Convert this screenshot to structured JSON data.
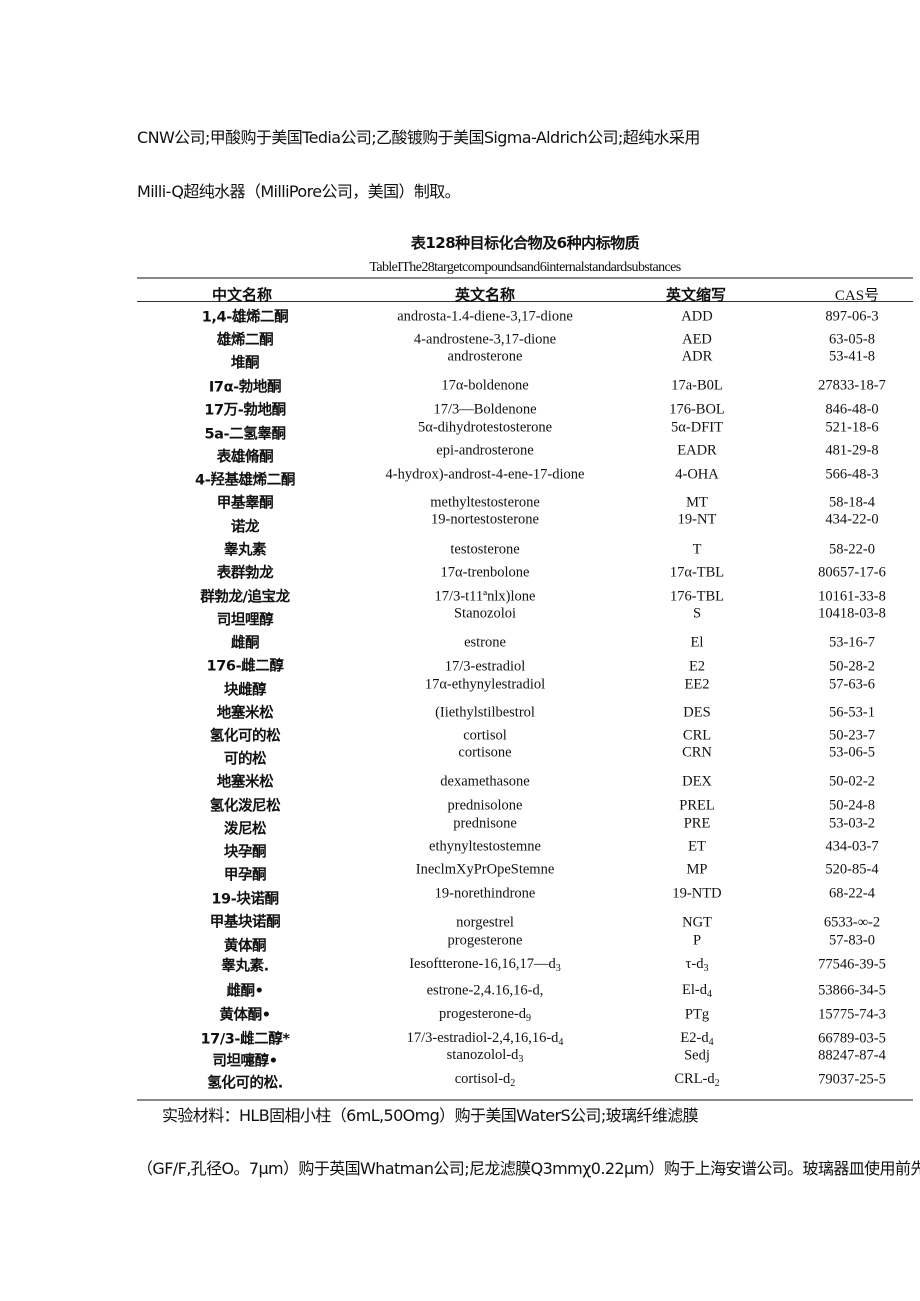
{
  "paragraph_top": [
    "CNW公司;甲酸购于美国Tedia公司;乙酸镀购于美国Sigma-Aldrich公司;超纯水采用",
    "Milli-Q超纯水器（MilliPore公司，美国）制取。"
  ],
  "table": {
    "caption_cn": "表128种目标化合物及6种内标物质",
    "caption_en": "TableIThe28targetcompoundsand6internalstandardsubstances",
    "headers": [
      "中文名称",
      "英文名称",
      "英文缩写",
      "CAS号"
    ],
    "rows": [
      {
        "cn": "1,4-雄烯二酮",
        "en": "androsta-1.4-diene-3,17-dione",
        "ab": "ADD",
        "cas": "897-06-3"
      },
      {
        "cn": "雄烯二酮",
        "en": "4-androstene-3,17-dione",
        "ab": "AED",
        "cas": "63-05-8"
      },
      {
        "cn": "堆酮",
        "en": "androsterone",
        "ab": "ADR",
        "cas": "53-41-8"
      },
      {
        "cn": "I7α-勃地酮",
        "en": "17α-boldenone",
        "ab": "17a-B0L",
        "cas": "27833-18-7"
      },
      {
        "cn": "17万-勃地酮",
        "en": "17/3—Boldenone",
        "ab": "176-BOL",
        "cas": "846-48-0"
      },
      {
        "cn": "5a-二氢睾酮",
        "en": "5α-dihydrotestosterone",
        "ab": "5α-DFIT",
        "cas": "521-18-6"
      },
      {
        "cn": "表雄脩酮",
        "en": "epi-androsterone",
        "ab": "EADR",
        "cas": "481-29-8"
      },
      {
        "cn": "4-羟基雄烯二酮",
        "en": "4-hydrox)-androst-4-ene-17-dione",
        "ab": "4-OHA",
        "cas": "566-48-3"
      },
      {
        "cn": "甲基睾酮",
        "en": "methyltestosterone",
        "ab": "MT",
        "cas": "58-18-4"
      },
      {
        "cn": "诺龙",
        "en": "19-nortestosterone",
        "ab": "19-NT",
        "cas": "434-22-0"
      },
      {
        "cn": "睾丸素",
        "en": "testosterone",
        "ab": "T",
        "cas": "58-22-0"
      },
      {
        "cn": "表群勃龙",
        "en": "17α-trenbolone",
        "ab": "17α-TBL",
        "cas": "80657-17-6"
      },
      {
        "cn": "群勃龙/追宝龙",
        "en": "17/3-t11ªnlx)lone",
        "ab": "176-TBL",
        "cas": "10161-33-8"
      },
      {
        "cn": "司坦哩醇",
        "en": "Stanozoloi",
        "ab": "S",
        "cas": "10418-03-8"
      },
      {
        "cn": "雌酮",
        "en": "estrone",
        "ab": "El",
        "cas": "53-16-7"
      },
      {
        "cn": "176-雌二醇",
        "en": "17/3-estradiol",
        "ab": "E2",
        "cas": "50-28-2"
      },
      {
        "cn": "块雌醇",
        "en": "17α-ethynylestradiol",
        "ab": "EE2",
        "cas": "57-63-6"
      },
      {
        "cn": "地塞米松",
        "en": "(Iiethylstilbestrol",
        "ab": "DES",
        "cas": "56-53-1"
      },
      {
        "cn": "氢化可的松",
        "en": "cortisol",
        "ab": "CRL",
        "cas": "50-23-7"
      },
      {
        "cn": "可的松",
        "en": "cortisone",
        "ab": "CRN",
        "cas": "53-06-5"
      },
      {
        "cn": "地塞米松",
        "en": "dexamethasone",
        "ab": "DEX",
        "cas": "50-02-2"
      },
      {
        "cn": "氢化泼尼松",
        "en": "prednisolone",
        "ab": "PREL",
        "cas": "50-24-8"
      },
      {
        "cn": "泼尼松",
        "en": "prednisone",
        "ab": "PRE",
        "cas": "53-03-2"
      },
      {
        "cn": "块孕酮",
        "en": "ethynyltestostemne",
        "ab": "ET",
        "cas": "434-03-7"
      },
      {
        "cn": "甲孕酮",
        "en": "IneclmXyPrOpeStemne",
        "ab": "MP",
        "cas": "520-85-4"
      },
      {
        "cn": "19-块诺酮",
        "en": "19-norethindrone",
        "ab": "19-NTD",
        "cas": "68-22-4"
      },
      {
        "cn": "甲基块诺酮",
        "en": "norgestrel",
        "ab": "NGT",
        "cas": "6533-∞-2"
      },
      {
        "cn": "黄体酮",
        "en": "progesterone",
        "ab": "P",
        "cas": "57-83-0"
      },
      {
        "cn": "睾丸素.",
        "en": "Iesoftterone-16,16,17—d",
        "en_sub": "3",
        "ab": "τ-d",
        "ab_sub": "3",
        "cas": "77546-39-5"
      },
      {
        "cn": "雌酮•",
        "en": "estrone-2,4.16,16-d,",
        "ab": "El-d",
        "ab_sub": "4",
        "cas": "53866-34-5"
      },
      {
        "cn": "黄体酮•",
        "en": "progesterone-d",
        "en_sub": "9",
        "ab": "PTg",
        "cas": "15775-74-3"
      },
      {
        "cn": "17/3-雌二醇*",
        "en": "17/3-estradiol-2,4,16,16-d",
        "en_sub": "4",
        "ab": "E2-d",
        "ab_sub": "4",
        "cas": "66789-03-5"
      },
      {
        "cn": "司坦嚏醇•",
        "en": "stanozolol-d",
        "en_sub": "3",
        "ab": "Sedj",
        "cas": "88247-87-4"
      },
      {
        "cn": "氢化可的松.",
        "en": "cortisol-d",
        "en_sub": "2",
        "ab": "CRL-d",
        "ab_sub": "2",
        "cas": "79037-25-5"
      }
    ]
  },
  "paragraph_bottom": [
    "实验材料：HLB固相小柱（6mL,50Omg）购于美国WaterS公司;玻璃纤维滤膜",
    "（GF/F,孔径O。7μm）购于英国Whatman公司;尼龙滤膜Q3mmχ0.22μm）购于上海安谱公司。玻璃器皿使用前先"
  ]
}
